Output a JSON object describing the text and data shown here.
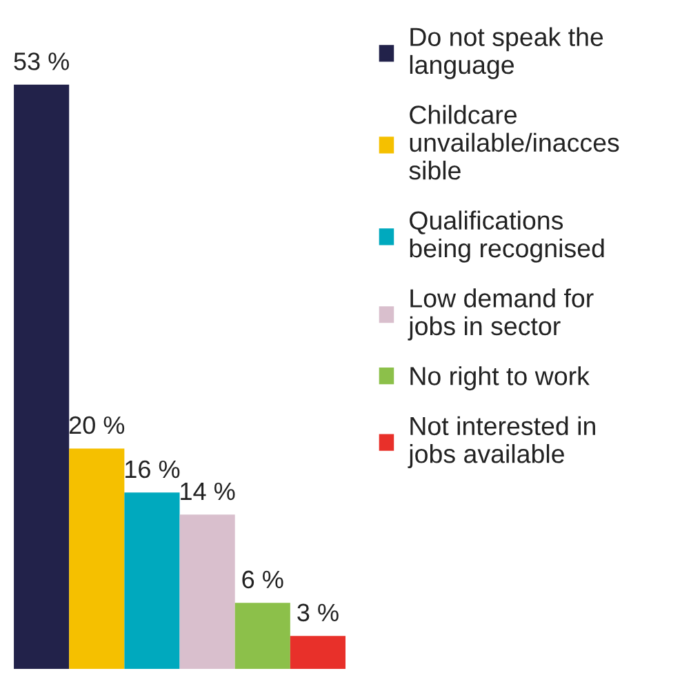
{
  "chart_data": {
    "type": "bar",
    "categories": [
      null,
      null,
      null,
      null,
      null,
      null
    ],
    "series": [
      {
        "name": "Do not speak the\nlanguage",
        "color": "#22224a",
        "values": [
          53,
          null,
          null,
          null,
          null,
          null
        ],
        "value_labels": [
          "53 %",
          null,
          null,
          null,
          null,
          null
        ]
      },
      {
        "name": "Childcare\nunvailable/inacces\nsible",
        "color": "#f5c000",
        "values": [
          null,
          20,
          null,
          null,
          null,
          null
        ],
        "value_labels": [
          null,
          "20 %",
          null,
          null,
          null,
          null
        ]
      },
      {
        "name": "Qualifications\nbeing recognised",
        "color": "#00a9be",
        "values": [
          null,
          null,
          16,
          null,
          null,
          null
        ],
        "value_labels": [
          null,
          null,
          "16 %",
          null,
          null,
          null
        ]
      },
      {
        "name": "Low demand for\njobs in sector",
        "color": "#d9bfcd",
        "values": [
          null,
          null,
          null,
          14,
          null,
          null
        ],
        "value_labels": [
          null,
          null,
          null,
          "14 %",
          null,
          null
        ]
      },
      {
        "name": "No right to work",
        "color": "#8cc04a",
        "values": [
          null,
          null,
          null,
          null,
          6,
          null
        ],
        "value_labels": [
          null,
          null,
          null,
          null,
          "6 %",
          null
        ]
      },
      {
        "name": "Not interested in\njobs available",
        "color": "#e8302a",
        "values": [
          null,
          null,
          null,
          null,
          null,
          3
        ],
        "value_labels": [
          null,
          null,
          null,
          null,
          null,
          "3 %"
        ]
      }
    ],
    "stacked": true,
    "legend": "right"
  }
}
